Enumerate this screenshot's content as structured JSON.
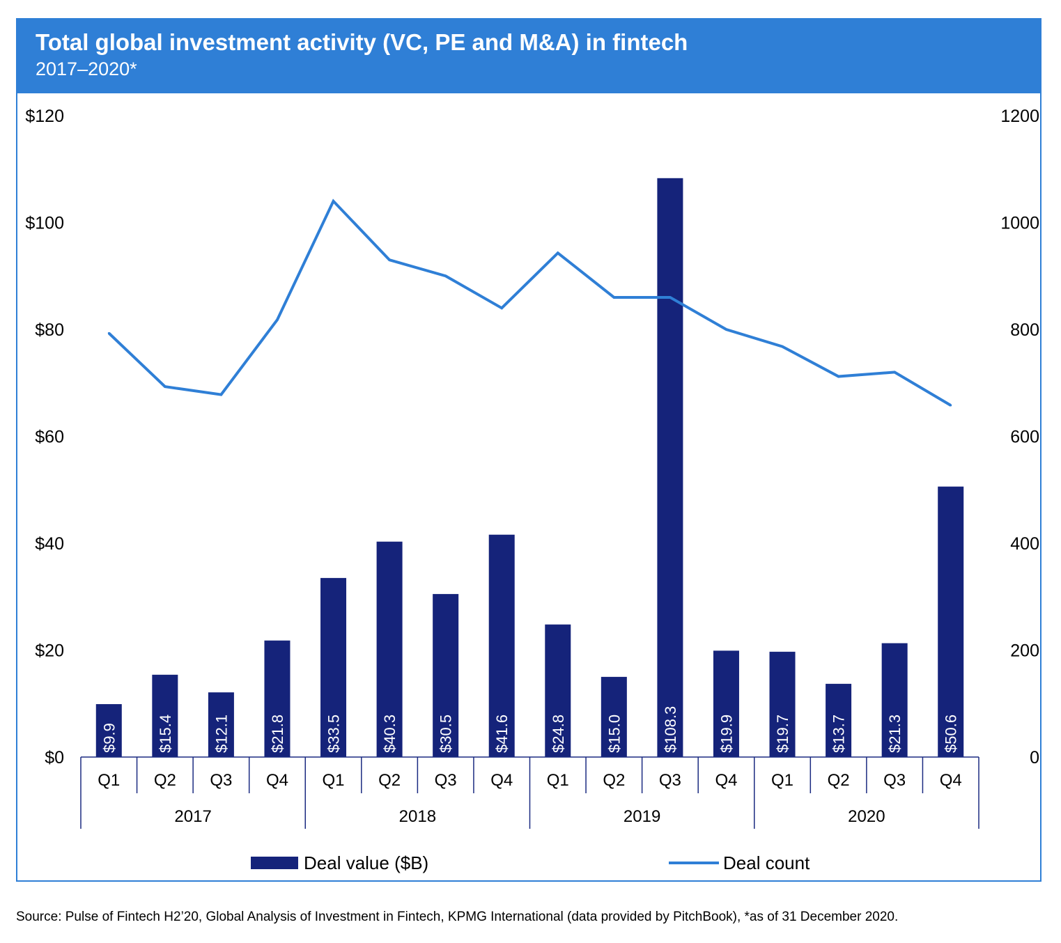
{
  "header": {
    "title": "Total global investment activity (VC, PE and M&A) in fintech",
    "subtitle": "2017–2020*"
  },
  "source": "Source: Pulse of Fintech H2’20, Global Analysis of Investment in Fintech, KPMG International (data provided by PitchBook), *as of 31 December 2020.",
  "colors": {
    "bar": "#15237a",
    "line": "#2f7fd6",
    "header": "#2f7fd6",
    "axis": "#1a2a80"
  },
  "chart_data": {
    "type": "bar",
    "title": "Total global investment activity (VC, PE and M&A) in fintech",
    "subtitle": "2017–2020*",
    "categories": [
      "Q1",
      "Q2",
      "Q3",
      "Q4",
      "Q1",
      "Q2",
      "Q3",
      "Q4",
      "Q1",
      "Q2",
      "Q3",
      "Q4",
      "Q1",
      "Q2",
      "Q3",
      "Q4"
    ],
    "groups": [
      {
        "label": "2017",
        "count": 4
      },
      {
        "label": "2018",
        "count": 4
      },
      {
        "label": "2019",
        "count": 4
      },
      {
        "label": "2020",
        "count": 4
      }
    ],
    "series": [
      {
        "name": "Deal value ($B)",
        "type": "bar",
        "axis": "left",
        "values": [
          9.9,
          15.4,
          12.1,
          21.8,
          33.5,
          40.3,
          30.5,
          41.6,
          24.8,
          15.0,
          108.3,
          19.9,
          19.7,
          13.7,
          21.3,
          50.6
        ],
        "labels": [
          "$9.9",
          "$15.4",
          "$12.1",
          "$21.8",
          "$33.5",
          "$40.3",
          "$30.5",
          "$41.6",
          "$24.8",
          "$15.0",
          "$108.3",
          "$19.9",
          "$19.7",
          "$13.7",
          "$21.3",
          "$50.6"
        ]
      },
      {
        "name": "Deal count",
        "type": "line",
        "axis": "right",
        "values": [
          793,
          693,
          678,
          818,
          1040,
          930,
          900,
          840,
          943,
          860,
          860,
          800,
          768,
          712,
          720,
          658
        ]
      }
    ],
    "y_left": {
      "min": 0,
      "max": 120,
      "ticks": [
        "$0",
        "$20",
        "$40",
        "$60",
        "$80",
        "$100",
        "$120"
      ]
    },
    "y_right": {
      "min": 0,
      "max": 1200,
      "ticks": [
        "0",
        "200",
        "400",
        "600",
        "800",
        "1000",
        "1200"
      ]
    },
    "legend": {
      "position": "bottom",
      "items": [
        "Deal value ($B)",
        "Deal count"
      ]
    }
  }
}
